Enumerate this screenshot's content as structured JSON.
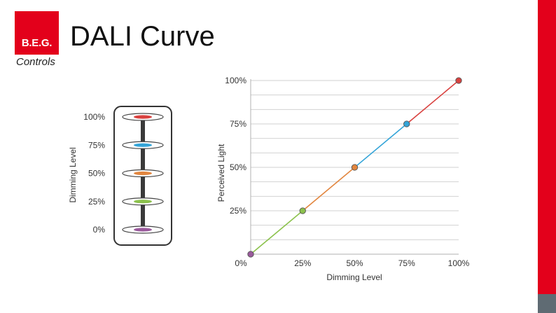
{
  "slide": {
    "title": "DALI Curve",
    "brand": {
      "logo_text": "B.E.G.",
      "logo_sub": "Controls",
      "accent": "#e3001b",
      "gray": "#5f6b73"
    }
  },
  "chart_data": [
    {
      "type": "diagram",
      "ylabel": "Dimming Level",
      "levels": [
        {
          "label": "100%",
          "value": 100,
          "color": "#d9413f"
        },
        {
          "label": "75%",
          "value": 75,
          "color": "#33a4d8"
        },
        {
          "label": "50%",
          "value": 50,
          "color": "#e2863f"
        },
        {
          "label": "25%",
          "value": 25,
          "color": "#8cc24d"
        },
        {
          "label": "0%",
          "value": 0,
          "color": "#9a5a9c"
        }
      ]
    },
    {
      "type": "line",
      "xlabel": "Dimming Level",
      "ylabel": "Perceived Light",
      "x_ticks": [
        "0%",
        "25%",
        "50%",
        "75%",
        "100%"
      ],
      "y_ticks": [
        "25%",
        "50%",
        "75%",
        "100%"
      ],
      "xlim": [
        0,
        100
      ],
      "ylim": [
        0,
        100
      ],
      "grid": true,
      "points": [
        {
          "x": 0,
          "y": 0,
          "color": "#9a5a9c"
        },
        {
          "x": 25,
          "y": 25,
          "color": "#8cc24d"
        },
        {
          "x": 50,
          "y": 50,
          "color": "#e2863f"
        },
        {
          "x": 75,
          "y": 75,
          "color": "#33a4d8"
        },
        {
          "x": 100,
          "y": 100,
          "color": "#d9413f"
        }
      ]
    }
  ]
}
